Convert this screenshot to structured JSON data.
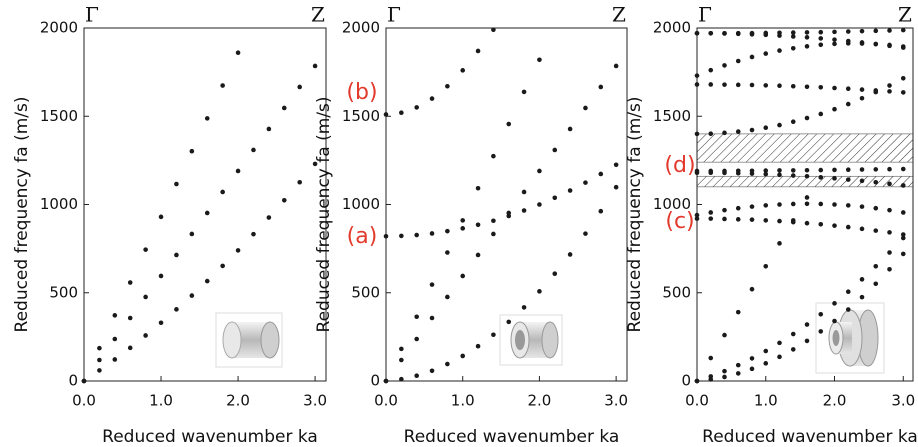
{
  "chart_data": [
    {
      "type": "scatter",
      "y_label": "Reduced frequency fa (m/s)",
      "x_label": "Reduced wavenumber ka",
      "end_labels": [
        "Γ",
        "Z"
      ],
      "xlim": [
        0,
        3.14159
      ],
      "ylim": [
        0,
        2000
      ],
      "xticks": [
        {
          "value": 0,
          "label": "0.0"
        },
        {
          "value": 1,
          "label": "1.0"
        },
        {
          "value": 2,
          "label": "2.0"
        },
        {
          "value": 3,
          "label": "3.0"
        }
      ],
      "yticks": [
        0,
        500,
        1000,
        1500,
        2000
      ],
      "x": [
        0,
        0.2,
        0.4,
        0.6,
        0.8,
        1.0,
        1.2,
        1.4,
        1.6,
        1.8,
        2.0,
        2.2,
        2.4,
        2.6,
        2.8,
        3.0
      ],
      "series": [
        {
          "color": "#1a1a1a",
          "values": [
            0,
            186,
            372,
            558,
            744,
            930,
            1116,
            1302,
            1488,
            1674,
            1860,
            null,
            null,
            null,
            null,
            null
          ]
        },
        {
          "color": "#1a1a1a",
          "values": [
            0,
            119,
            238,
            357,
            476,
            595,
            714,
            833,
            952,
            1071,
            1190,
            1309,
            1428,
            1547,
            1666,
            1785
          ]
        },
        {
          "color": "#1a1a1a",
          "values": [
            0,
            60,
            122,
            188,
            258,
            330,
            406,
            484,
            566,
            652,
            740,
            832,
            926,
            1024,
            1126,
            1230
          ]
        }
      ]
    },
    {
      "type": "scatter",
      "y_label": "Reduced frequency fa (m/s)",
      "x_label": "Reduced wavenumber ka",
      "end_labels": [
        "Γ",
        "Z"
      ],
      "annotations": [
        "(b)",
        "(a)"
      ],
      "xlim": [
        0,
        3.14159
      ],
      "ylim": [
        0,
        2000
      ],
      "xticks": [
        {
          "value": 0,
          "label": "0.0"
        },
        {
          "value": 1,
          "label": "1.0"
        },
        {
          "value": 2,
          "label": "2.0"
        },
        {
          "value": 3,
          "label": "3.0"
        }
      ],
      "yticks": [
        0,
        500,
        1000,
        1500,
        2000
      ],
      "x": [
        0,
        0.2,
        0.4,
        0.6,
        0.8,
        1.0,
        1.2,
        1.4,
        1.6,
        1.8,
        2.0,
        2.2,
        2.4,
        2.6,
        2.8,
        3.0
      ],
      "series": [
        {
          "color": "#1a1a1a",
          "values": [
            1510,
            1520,
            1550,
            1600,
            1670,
            1760,
            1870,
            1990,
            null,
            null,
            null,
            null,
            null,
            null,
            null,
            null
          ]
        },
        {
          "color": "#1a1a1a",
          "values": [
            820,
            822,
            827,
            836,
            849,
            865,
            885,
            908,
            935,
            966,
            1000,
            1038,
            1079,
            1124,
            1173,
            1225
          ]
        },
        {
          "color": "#1a1a1a",
          "values": [
            0,
            182,
            364,
            546,
            728,
            910,
            1092,
            1274,
            1456,
            1638,
            1820,
            null,
            null,
            null,
            null,
            null
          ]
        },
        {
          "color": "#1a1a1a",
          "values": [
            0,
            119,
            238,
            357,
            476,
            595,
            714,
            833,
            952,
            1071,
            1190,
            1309,
            1428,
            1547,
            1666,
            1785
          ]
        },
        {
          "color": "#1a1a1a",
          "values": [
            0,
            10,
            30,
            58,
            96,
            142,
            197,
            262,
            335,
            417,
            508,
            608,
            717,
            835,
            962,
            1098
          ]
        }
      ]
    },
    {
      "type": "scatter",
      "y_label": "Reduced frequency fa (m/s)",
      "x_label": "Reduced wavenumber ka",
      "end_labels": [
        "Γ",
        "Z"
      ],
      "annotations": [
        "(d)",
        "(c)"
      ],
      "shaded_ranges": [
        [
          1240,
          1400
        ],
        [
          1100,
          1160
        ]
      ],
      "xlim": [
        0,
        3.14159
      ],
      "ylim": [
        0,
        2000
      ],
      "xticks": [
        {
          "value": 0,
          "label": "0.0"
        },
        {
          "value": 1,
          "label": "1.0"
        },
        {
          "value": 2,
          "label": "2.0"
        },
        {
          "value": 3,
          "label": "3.0"
        }
      ],
      "yticks": [
        0,
        500,
        1000,
        1500,
        2000
      ],
      "x": [
        0,
        0.2,
        0.4,
        0.6,
        0.8,
        1.0,
        1.2,
        1.4,
        1.6,
        1.8,
        2.0,
        2.2,
        2.4,
        2.6,
        2.8,
        3.0
      ],
      "series": [
        {
          "color": "#1a1a1a",
          "values": [
            1970,
            1970,
            1970,
            1971,
            1971,
            1972,
            1973,
            1974,
            1975,
            1976,
            1978,
            1980,
            1982,
            1984,
            1986,
            1988
          ]
        },
        {
          "color": "#1a1a1a",
          "values": [
            1970,
            1970,
            1969,
            1967,
            1964,
            1961,
            1957,
            1952,
            1947,
            1941,
            1934,
            1926,
            1918,
            1909,
            1899,
            1889
          ]
        },
        {
          "color": "#1a1a1a",
          "values": [
            1730,
            1761,
            1788,
            1813,
            1836,
            1855,
            1872,
            1885,
            1896,
            1905,
            1910,
            1913,
            1912,
            1909,
            1904,
            1895
          ]
        },
        {
          "color": "#1a1a1a",
          "values": [
            1680,
            1680,
            1679,
            1678,
            1677,
            1675,
            1673,
            1670,
            1667,
            1664,
            1660,
            1656,
            1651,
            1646,
            1641,
            1635
          ]
        },
        {
          "color": "#1a1a1a",
          "values": [
            1400,
            1401,
            1406,
            1413,
            1422,
            1435,
            1450,
            1469,
            1490,
            1513,
            1540,
            1569,
            1602,
            1637,
            1674,
            1715
          ]
        },
        {
          "color": "#1a1a1a",
          "values": [
            1190,
            1190,
            1190,
            1191,
            1191,
            1192,
            1193,
            1193,
            1194,
            1195,
            1196,
            1197,
            1198,
            1199,
            1200,
            1201
          ]
        },
        {
          "color": "#1a1a1a",
          "values": [
            1180,
            1180,
            1179,
            1177,
            1175,
            1172,
            1168,
            1164,
            1160,
            1154,
            1148,
            1141,
            1134,
            1126,
            1117,
            1108
          ]
        },
        {
          "color": "#1a1a1a",
          "values": [
            940,
            955,
            968,
            979,
            988,
            995,
            1000,
            1003,
            1004,
            1003,
            1000,
            995,
            988,
            979,
            968,
            955
          ]
        },
        {
          "color": "#1a1a1a",
          "values": [
            920,
            920,
            918,
            916,
            914,
            910,
            906,
            900,
            894,
            888,
            880,
            872,
            862,
            852,
            842,
            830
          ]
        },
        {
          "color": "#1a1a1a",
          "values": [
            0,
            130,
            260,
            390,
            520,
            650,
            780,
            910,
            1040,
            null,
            null,
            null,
            null,
            null,
            null,
            null
          ]
        },
        {
          "color": "#1a1a1a",
          "values": [
            0,
            26,
            56,
            90,
            128,
            170,
            216,
            266,
            320,
            378,
            440,
            506,
            576,
            650,
            728,
            810
          ]
        },
        {
          "color": "#1a1a1a",
          "values": [
            0,
            9,
            23,
            43,
            69,
            100,
            137,
            179,
            227,
            281,
            340,
            405,
            475,
            551,
            633,
            720
          ]
        }
      ]
    }
  ]
}
